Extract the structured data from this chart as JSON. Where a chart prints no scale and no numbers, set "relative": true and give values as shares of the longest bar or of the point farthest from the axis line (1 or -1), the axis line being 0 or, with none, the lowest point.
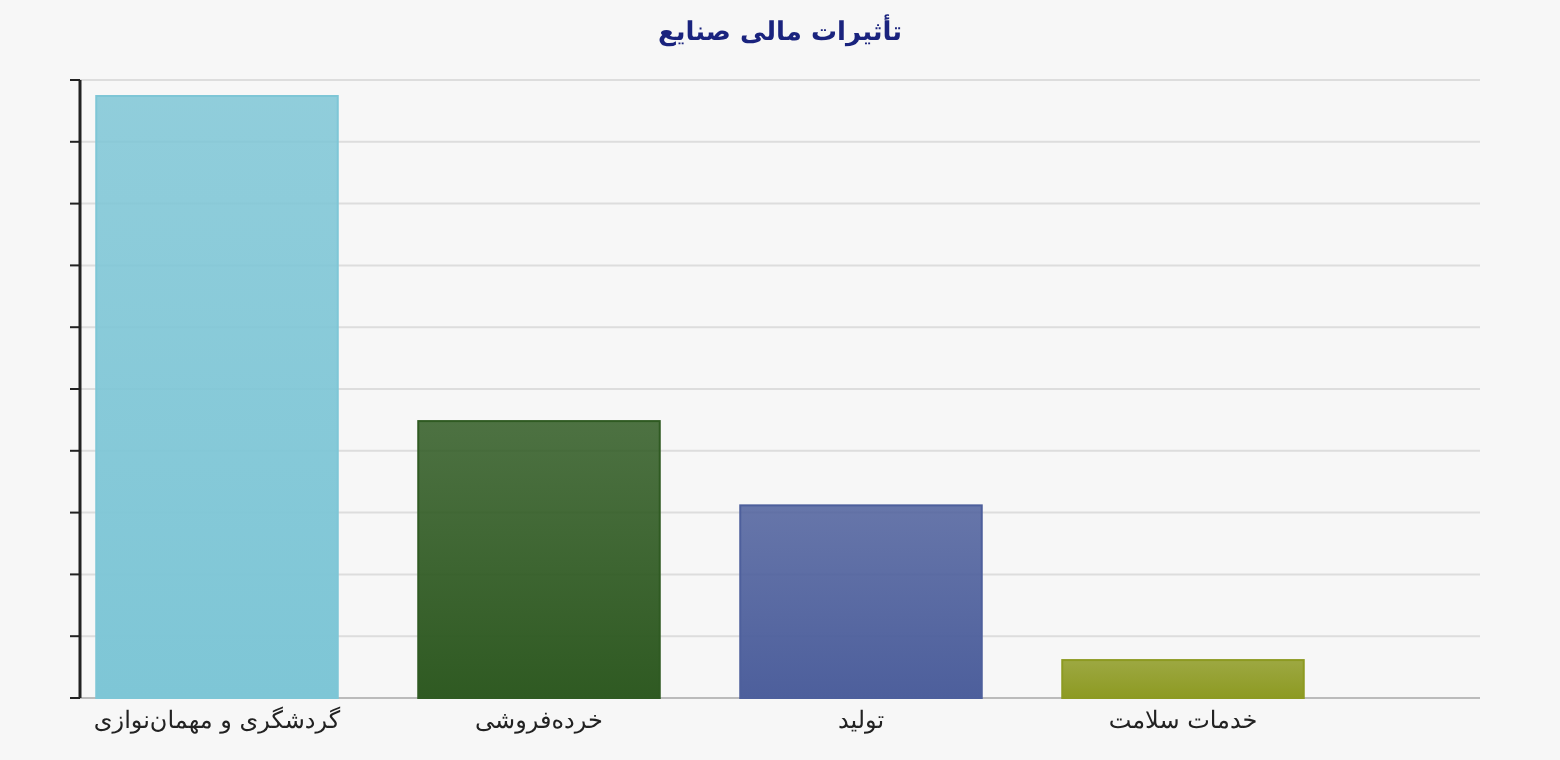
{
  "chart_data": {
    "type": "bar",
    "title": "تأثیرات مالی صنایع",
    "categories": [
      "گردشگری و مهمان‌نوازی",
      "خرده‌فروشی",
      "تولید",
      "خدمات سلامت"
    ],
    "values": [
      1,
      0.46,
      0.32,
      0.063
    ],
    "colors": [
      "#7ec6d6",
      "#2f5a22",
      "#4d5f9c",
      "#8d9a22"
    ],
    "relative": true,
    "grid": "y"
  }
}
